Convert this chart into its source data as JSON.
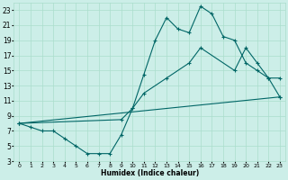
{
  "xlabel": "Humidex (Indice chaleur)",
  "bg_color": "#cceee8",
  "grid_color": "#aaddcc",
  "line_color": "#006666",
  "xlim": [
    -0.5,
    23.5
  ],
  "ylim": [
    3,
    24
  ],
  "xticks": [
    0,
    1,
    2,
    3,
    4,
    5,
    6,
    7,
    8,
    9,
    10,
    11,
    12,
    13,
    14,
    15,
    16,
    17,
    18,
    19,
    20,
    21,
    22,
    23
  ],
  "yticks": [
    3,
    5,
    7,
    9,
    11,
    13,
    15,
    17,
    19,
    21,
    23
  ],
  "curve1_x": [
    0,
    1,
    2,
    3,
    4,
    5,
    6,
    7,
    8,
    9,
    10,
    11,
    12,
    13,
    14,
    15,
    16,
    17,
    18,
    19,
    20,
    21,
    22,
    23
  ],
  "curve1_y": [
    8,
    7.5,
    7,
    7,
    6,
    5,
    4,
    4,
    4,
    6.5,
    10,
    14.5,
    19,
    22,
    20.5,
    20,
    23.5,
    22.5,
    19.5,
    19,
    16,
    15,
    14,
    11.5
  ],
  "curve2_x": [
    0,
    9,
    10,
    11,
    13,
    15,
    16,
    19,
    20,
    21,
    22,
    23
  ],
  "curve2_y": [
    8,
    8.5,
    10,
    12,
    14,
    16,
    18,
    15,
    18,
    16,
    14,
    14
  ],
  "curve3_x": [
    0,
    23
  ],
  "curve3_y": [
    8,
    11.5
  ],
  "marker": "+"
}
